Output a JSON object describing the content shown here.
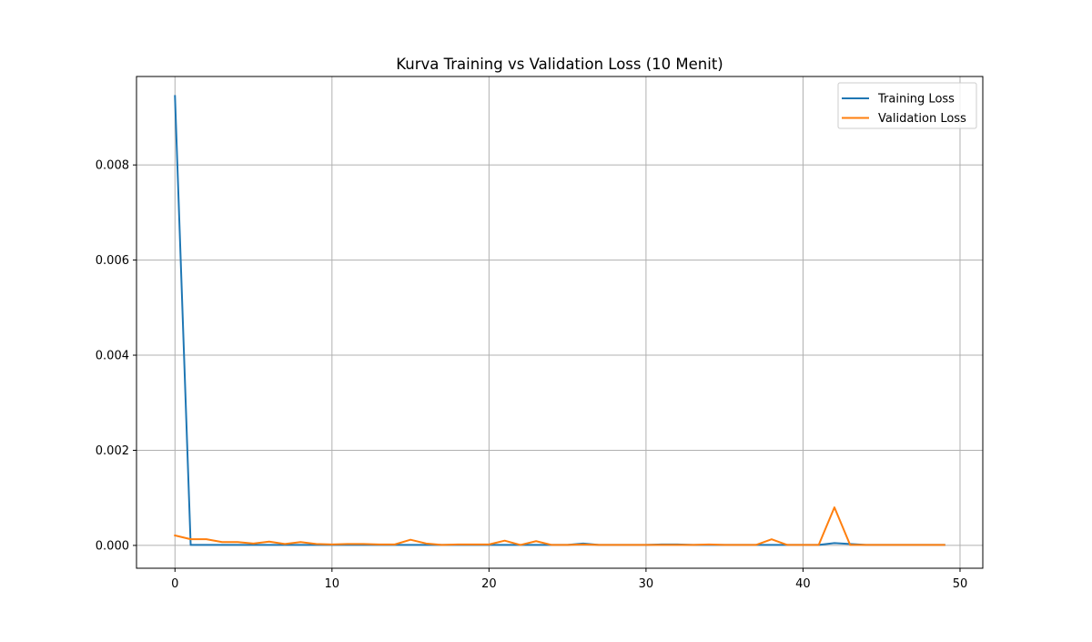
{
  "chart_data": {
    "type": "line",
    "title": "Kurva Training vs Validation Loss (10 Menit)",
    "xlabel": "",
    "ylabel": "",
    "xlim": [
      -2.45,
      51.45
    ],
    "ylim": [
      -0.00048,
      0.00986
    ],
    "grid": true,
    "legend_position": "top-right",
    "x_ticks": [
      0,
      10,
      20,
      30,
      40,
      50
    ],
    "x_tick_labels": [
      "0",
      "10",
      "20",
      "30",
      "40",
      "50"
    ],
    "y_ticks": [
      0,
      0.002,
      0.004,
      0.006,
      0.008
    ],
    "y_tick_labels": [
      "0.000",
      "0.002",
      "0.004",
      "0.006",
      "0.008"
    ],
    "x": [
      0,
      1,
      2,
      3,
      4,
      5,
      6,
      7,
      8,
      9,
      10,
      11,
      12,
      13,
      14,
      15,
      16,
      17,
      18,
      19,
      20,
      21,
      22,
      23,
      24,
      25,
      26,
      27,
      28,
      29,
      30,
      31,
      32,
      33,
      34,
      35,
      36,
      37,
      38,
      39,
      40,
      41,
      42,
      43,
      44,
      45,
      46,
      47,
      48,
      49
    ],
    "series": [
      {
        "name": "Training Loss",
        "color": "#1f77b4",
        "values": [
          0.00945,
          1e-05,
          1e-05,
          1e-05,
          1e-05,
          1e-05,
          1e-05,
          1e-05,
          1e-05,
          1e-05,
          1e-05,
          1e-05,
          1e-05,
          1e-05,
          1e-05,
          1e-05,
          1e-05,
          1e-05,
          1e-05,
          1e-05,
          1e-05,
          1e-05,
          1e-05,
          1e-05,
          1e-05,
          1e-05,
          4e-05,
          1e-05,
          1e-05,
          1e-05,
          1e-05,
          2e-05,
          2e-05,
          1e-05,
          1e-05,
          1e-05,
          1e-05,
          1e-05,
          1e-05,
          1e-05,
          1e-05,
          1e-05,
          5e-05,
          3e-05,
          1e-05,
          1e-05,
          1e-05,
          1e-05,
          1e-05,
          1e-05
        ]
      },
      {
        "name": "Validation Loss",
        "color": "#ff7f0e",
        "values": [
          0.00021,
          0.00013,
          0.00013,
          7e-05,
          7e-05,
          4e-05,
          8e-05,
          3e-05,
          7e-05,
          3e-05,
          2e-05,
          3e-05,
          3e-05,
          2e-05,
          2e-05,
          0.00012,
          4e-05,
          1e-05,
          2e-05,
          2e-05,
          2e-05,
          0.0001,
          1e-05,
          9e-05,
          1e-05,
          1e-05,
          2e-05,
          1e-05,
          1e-05,
          1e-05,
          1e-05,
          1e-05,
          1e-05,
          1e-05,
          2e-05,
          1e-05,
          1e-05,
          1e-05,
          0.00013,
          1e-05,
          1e-05,
          1e-05,
          0.0008,
          1e-05,
          1e-05,
          1e-05,
          1e-05,
          1e-05,
          1e-05,
          1e-05
        ]
      }
    ]
  }
}
